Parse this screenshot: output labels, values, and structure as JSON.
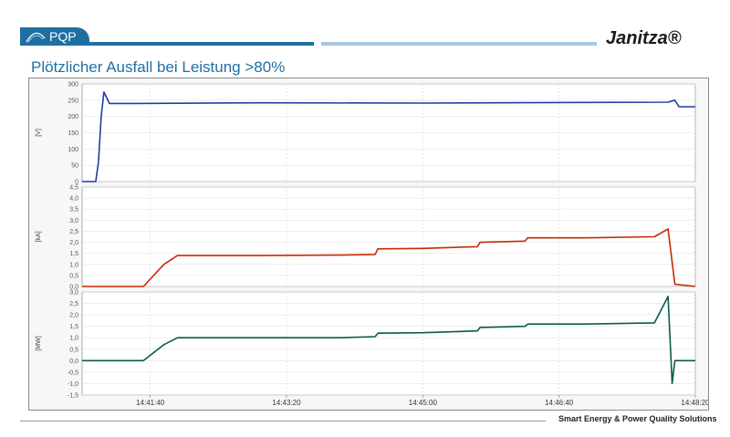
{
  "header": {
    "logo_text": "PQP",
    "brand": "Janitza®",
    "accent_dark": "#1f6fa3",
    "accent_light": "#a9c6e0"
  },
  "title": "Plötzlicher Ausfall bei Leistung >80%",
  "footer": "Smart Energy & Power Quality Solutions",
  "chart_data": [
    {
      "type": "line",
      "ylabel": "[V]",
      "ylim": [
        0,
        300
      ],
      "yticks": [
        "300",
        "250",
        "200",
        "150",
        "100",
        "50",
        "0"
      ],
      "xlim": [
        "14:40:50",
        "14:48:20"
      ],
      "series": [
        {
          "color": "#1f3fa0",
          "x": [
            "14:40:50",
            "14:41:00",
            "14:41:02",
            "14:41:04",
            "14:41:06",
            "14:41:10",
            "14:41:30",
            "14:43:00",
            "14:45:00",
            "14:47:00",
            "14:48:00",
            "14:48:05",
            "14:48:08",
            "14:48:20"
          ],
          "values": [
            0,
            0,
            60,
            200,
            275,
            240,
            240,
            242,
            241,
            243,
            244,
            250,
            230,
            230
          ]
        }
      ]
    },
    {
      "type": "line",
      "ylabel": "[kA]",
      "ylim": [
        0,
        4.5
      ],
      "yticks": [
        "4,5",
        "4,0",
        "3,5",
        "3,0",
        "2,5",
        "2,0",
        "1,5",
        "1,0",
        "0,5",
        "0,0"
      ],
      "xlim": [
        "14:40:50",
        "14:48:20"
      ],
      "series": [
        {
          "color": "#c82a00",
          "x": [
            "14:40:50",
            "14:41:35",
            "14:41:50",
            "14:42:00",
            "14:43:00",
            "14:44:00",
            "14:44:25",
            "14:44:27",
            "14:45:00",
            "14:45:40",
            "14:45:42",
            "14:46:15",
            "14:46:17",
            "14:47:00",
            "14:47:50",
            "14:48:00",
            "14:48:05",
            "14:48:20"
          ],
          "values": [
            0,
            0,
            1.0,
            1.4,
            1.4,
            1.42,
            1.45,
            1.7,
            1.72,
            1.8,
            2.0,
            2.05,
            2.2,
            2.2,
            2.25,
            2.6,
            0.1,
            0
          ]
        }
      ]
    },
    {
      "type": "line",
      "ylabel": "[MW]",
      "ylim": [
        -1.5,
        3.0
      ],
      "yticks": [
        "3,0",
        "2,5",
        "2,0",
        "1,5",
        "1,0",
        "0,5",
        "0,0",
        "-0,5",
        "-1,0",
        "-1,5"
      ],
      "xlim": [
        "14:40:50",
        "14:48:20"
      ],
      "xticks": [
        "14:41:40",
        "14:43:20",
        "14:45:00",
        "14:46:40",
        "14:48:20"
      ],
      "series": [
        {
          "color": "#0a5a4e",
          "x": [
            "14:40:50",
            "14:41:35",
            "14:41:50",
            "14:42:00",
            "14:43:00",
            "14:44:00",
            "14:44:25",
            "14:44:27",
            "14:45:00",
            "14:45:40",
            "14:45:42",
            "14:46:15",
            "14:46:17",
            "14:47:00",
            "14:47:50",
            "14:48:00",
            "14:48:03",
            "14:48:05",
            "14:48:20"
          ],
          "values": [
            0,
            0,
            0.7,
            1.0,
            1.0,
            1.0,
            1.05,
            1.2,
            1.22,
            1.3,
            1.45,
            1.5,
            1.6,
            1.6,
            1.65,
            2.8,
            -1.0,
            0,
            0
          ]
        }
      ]
    }
  ]
}
